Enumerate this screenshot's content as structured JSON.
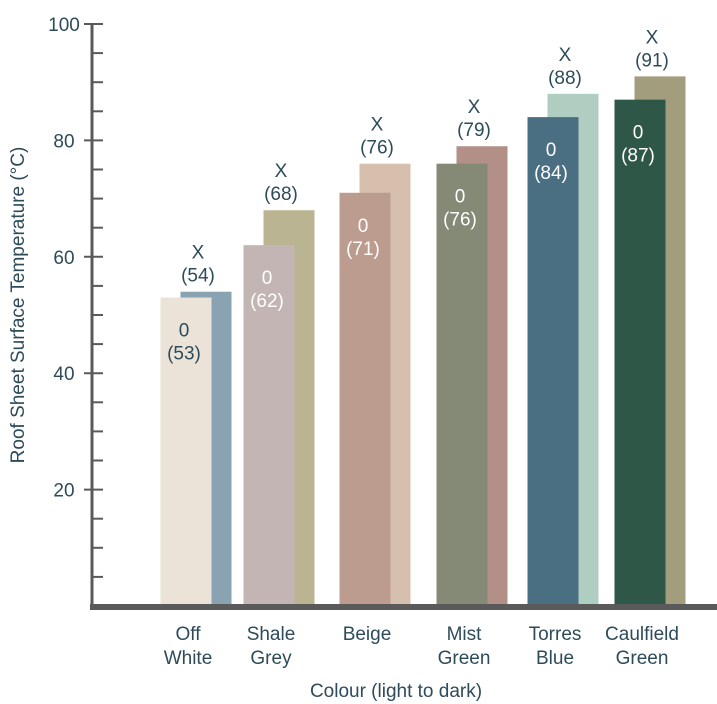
{
  "chart_data": {
    "type": "bar",
    "title": "",
    "xlabel": "Colour (light to dark)",
    "ylabel": "Roof Sheet Surface Temperature (°C)",
    "ylim": [
      0,
      100
    ],
    "yticks": [
      20,
      40,
      60,
      80,
      100
    ],
    "grid": false,
    "legend": "none",
    "categories": [
      [
        "Off",
        "White"
      ],
      [
        "Shale",
        "Grey"
      ],
      [
        "Beige"
      ],
      [
        "Mist",
        "Green"
      ],
      [
        "Torres",
        "Blue"
      ],
      [
        "Caulfield",
        "Green"
      ]
    ],
    "series": [
      {
        "marker": "0",
        "values": [
          53,
          62,
          71,
          76,
          84,
          87
        ],
        "labels": [
          "(53)",
          "(62)",
          "(71)",
          "(76)",
          "(84)",
          "(87)"
        ],
        "colors": [
          "#ebe3d8",
          "#c3b5b4",
          "#bc9c8e",
          "#858a76",
          "#4a6e82",
          "#2f5748"
        ]
      },
      {
        "marker": "X",
        "values": [
          54,
          68,
          76,
          79,
          88,
          91
        ],
        "labels": [
          "(54)",
          "(68)",
          "(76)",
          "(79)",
          "(88)",
          "(91)"
        ],
        "colors": [
          "#8aa3b2",
          "#bab493",
          "#d6c0ad",
          "#b28f87",
          "#afcec1",
          "#a29d7d"
        ]
      }
    ],
    "colors": {
      "axis": "#5a5a5a",
      "label_dark": "#2e4b5a",
      "label_light": "#ffffff"
    }
  }
}
